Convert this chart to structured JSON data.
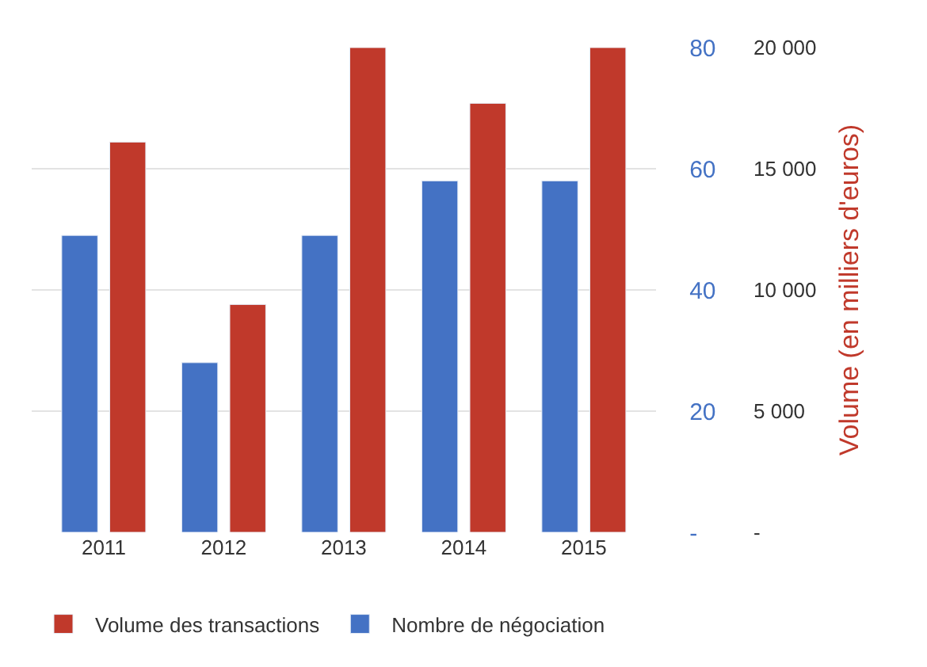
{
  "chart_data": {
    "type": "bar",
    "categories": [
      "2011",
      "2012",
      "2013",
      "2014",
      "2015"
    ],
    "series": [
      {
        "name": "Nombre de négociation",
        "color": "#4472c4",
        "values": [
          49,
          28,
          49,
          58,
          58
        ]
      },
      {
        "name": "Volume des transactions",
        "color": "#c0392b",
        "axis": "y2",
        "values": [
          16100,
          9400,
          20000,
          17700,
          20000
        ]
      }
    ],
    "ylim": [
      0,
      80
    ],
    "yticks": [
      {
        "value": 0,
        "label": "-"
      },
      20,
      40,
      60,
      80
    ],
    "y2lim": [
      0,
      20000
    ],
    "y2ticks": [
      {
        "value": 0,
        "label": "-"
      },
      {
        "value": 5000,
        "label": "5 000"
      },
      {
        "value": 10000,
        "label": "10 000"
      },
      {
        "value": 15000,
        "label": "15 000"
      },
      {
        "value": 20000,
        "label": "20 000"
      }
    ],
    "y2label": "Volume (en milliers d'euros)",
    "grid": "y",
    "legend": "bottom"
  }
}
